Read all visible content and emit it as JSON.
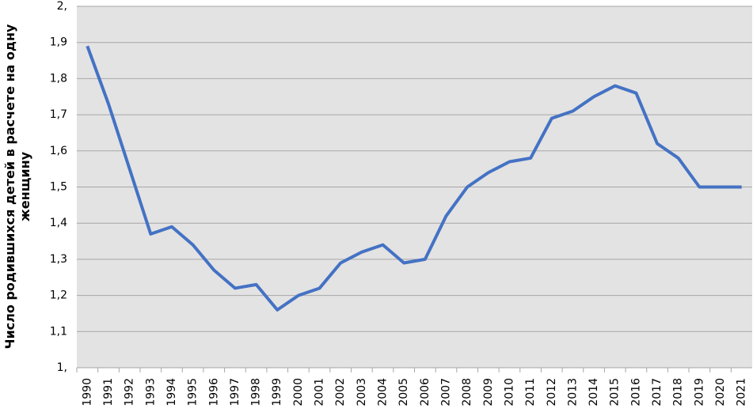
{
  "chart_data": {
    "type": "line",
    "y_label": "Число родившихся детей в расчете на одну женщину",
    "categories": [
      "1990",
      "1991",
      "1992",
      "1993",
      "1994",
      "1995",
      "1996",
      "1997",
      "1998",
      "1999",
      "2000",
      "2001",
      "2002",
      "2003",
      "2004",
      "2005",
      "2006",
      "2007",
      "2008",
      "2009",
      "2010",
      "2011",
      "2012",
      "2013",
      "2014",
      "2015",
      "2016",
      "2017",
      "2018",
      "2019",
      "2020",
      "2021"
    ],
    "values": [
      1.89,
      1.73,
      1.55,
      1.37,
      1.39,
      1.34,
      1.27,
      1.22,
      1.23,
      1.16,
      1.2,
      1.22,
      1.29,
      1.32,
      1.34,
      1.29,
      1.3,
      1.42,
      1.5,
      1.54,
      1.57,
      1.58,
      1.69,
      1.71,
      1.75,
      1.78,
      1.76,
      1.62,
      1.58,
      1.5,
      1.5,
      1.5
    ],
    "color": "#4472c4",
    "ylim": [
      1.0,
      2.0
    ],
    "yticks": [
      {
        "value": 1.0,
        "label": "1,"
      },
      {
        "value": 1.1,
        "label": "1,1"
      },
      {
        "value": 1.2,
        "label": "1,2"
      },
      {
        "value": 1.3,
        "label": "1,3"
      },
      {
        "value": 1.4,
        "label": "1,4"
      },
      {
        "value": 1.5,
        "label": "1,5"
      },
      {
        "value": 1.6,
        "label": "1,6"
      },
      {
        "value": 1.7,
        "label": "1,7"
      },
      {
        "value": 1.8,
        "label": "1,8"
      },
      {
        "value": 1.9,
        "label": "1,9"
      },
      {
        "value": 2.0,
        "label": "2,"
      }
    ],
    "grid": true
  }
}
